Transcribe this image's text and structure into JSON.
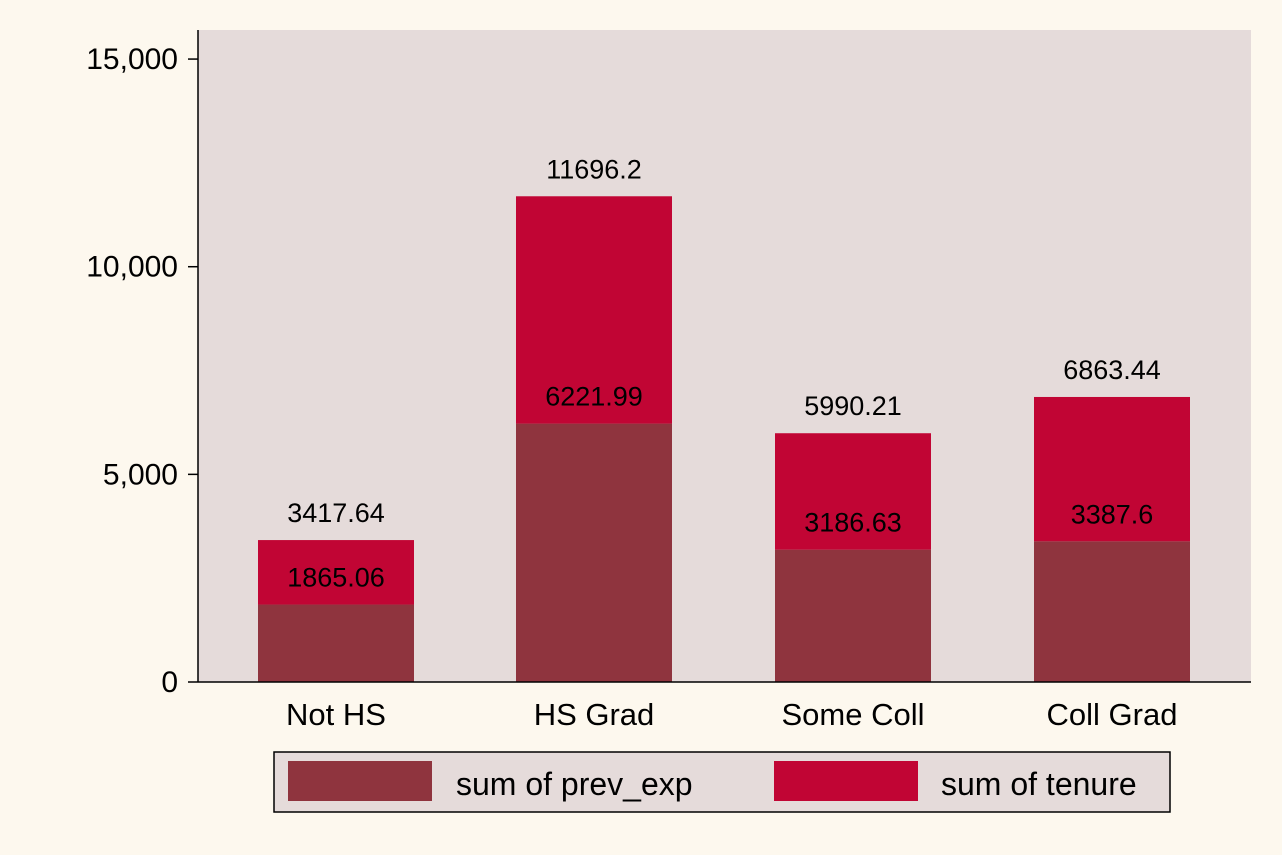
{
  "chart_data": {
    "type": "bar",
    "stacked": true,
    "categories": [
      "Not HS",
      "HS Grad",
      "Some Coll",
      "Coll Grad"
    ],
    "series": [
      {
        "name": "sum of prev_exp",
        "color": "#8f343e",
        "values": [
          1865.06,
          6221.99,
          3186.63,
          3387.6
        ]
      },
      {
        "name": "sum of tenure",
        "color": "#c10534",
        "values": [
          1552.58,
          5474.21,
          2803.58,
          3475.84
        ]
      }
    ],
    "data_labels": {
      "inner": [
        "1865.06",
        "6221.99",
        "3186.63",
        "3387.6"
      ],
      "top": [
        "3417.64",
        "11696.2",
        "5990.21",
        "6863.44"
      ]
    },
    "top_totals": [
      3417.64,
      11696.2,
      5990.21,
      6863.44
    ],
    "ylim": [
      0,
      15700
    ],
    "yticks": [
      0,
      5000,
      10000,
      15000
    ],
    "ytick_labels": [
      "0",
      "5,000",
      "10,000",
      "15,000"
    ],
    "xlabel": "",
    "ylabel": "",
    "title": "",
    "grid": false,
    "legend": {
      "position": "bottom",
      "columns": 2
    },
    "colors": {
      "page_background": "#fdf8ee",
      "plot_background": "#e5dbda",
      "legend_background": "#e5dbda"
    }
  }
}
